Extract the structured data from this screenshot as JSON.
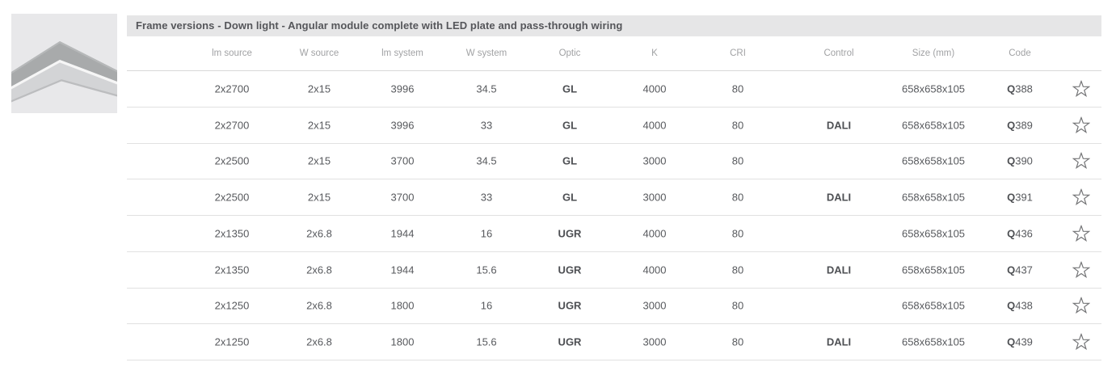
{
  "title": "Frame versions - Down light - Angular module complete with LED plate and pass-through wiring",
  "product_image": {
    "description": "angular-frame-corner-profile"
  },
  "colors": {
    "title_bar_bg": "#e6e6e7",
    "title_text": "#55565a",
    "header_text": "#a1a2a4",
    "cell_text": "#57595d",
    "separator": "#e1e1e1",
    "star_stroke": "#737476",
    "image_bg": "#e8e8ea",
    "image_top_band": "#a8aaab",
    "image_silver_band": "#d3d4d6"
  },
  "table": {
    "columns": [
      "lm source",
      "W source",
      "lm system",
      "W system",
      "Optic",
      "K",
      "CRI",
      "Control",
      "Size (mm)",
      "Code"
    ],
    "favorite_icon": "star-outline",
    "rows": [
      {
        "lm_source": "2x2700",
        "w_source": "2x15",
        "lm_system": "3996",
        "w_system": "34.5",
        "optic": "GL",
        "k": "4000",
        "cri": "80",
        "control": "",
        "size": "658x658x105",
        "code": "Q388"
      },
      {
        "lm_source": "2x2700",
        "w_source": "2x15",
        "lm_system": "3996",
        "w_system": "33",
        "optic": "GL",
        "k": "4000",
        "cri": "80",
        "control": "DALI",
        "size": "658x658x105",
        "code": "Q389"
      },
      {
        "lm_source": "2x2500",
        "w_source": "2x15",
        "lm_system": "3700",
        "w_system": "34.5",
        "optic": "GL",
        "k": "3000",
        "cri": "80",
        "control": "",
        "size": "658x658x105",
        "code": "Q390"
      },
      {
        "lm_source": "2x2500",
        "w_source": "2x15",
        "lm_system": "3700",
        "w_system": "33",
        "optic": "GL",
        "k": "3000",
        "cri": "80",
        "control": "DALI",
        "size": "658x658x105",
        "code": "Q391"
      },
      {
        "lm_source": "2x1350",
        "w_source": "2x6.8",
        "lm_system": "1944",
        "w_system": "16",
        "optic": "UGR",
        "k": "4000",
        "cri": "80",
        "control": "",
        "size": "658x658x105",
        "code": "Q436"
      },
      {
        "lm_source": "2x1350",
        "w_source": "2x6.8",
        "lm_system": "1944",
        "w_system": "15.6",
        "optic": "UGR",
        "k": "4000",
        "cri": "80",
        "control": "DALI",
        "size": "658x658x105",
        "code": "Q437"
      },
      {
        "lm_source": "2x1250",
        "w_source": "2x6.8",
        "lm_system": "1800",
        "w_system": "16",
        "optic": "UGR",
        "k": "3000",
        "cri": "80",
        "control": "",
        "size": "658x658x105",
        "code": "Q438"
      },
      {
        "lm_source": "2x1250",
        "w_source": "2x6.8",
        "lm_system": "1800",
        "w_system": "15.6",
        "optic": "UGR",
        "k": "3000",
        "cri": "80",
        "control": "DALI",
        "size": "658x658x105",
        "code": "Q439"
      }
    ]
  }
}
